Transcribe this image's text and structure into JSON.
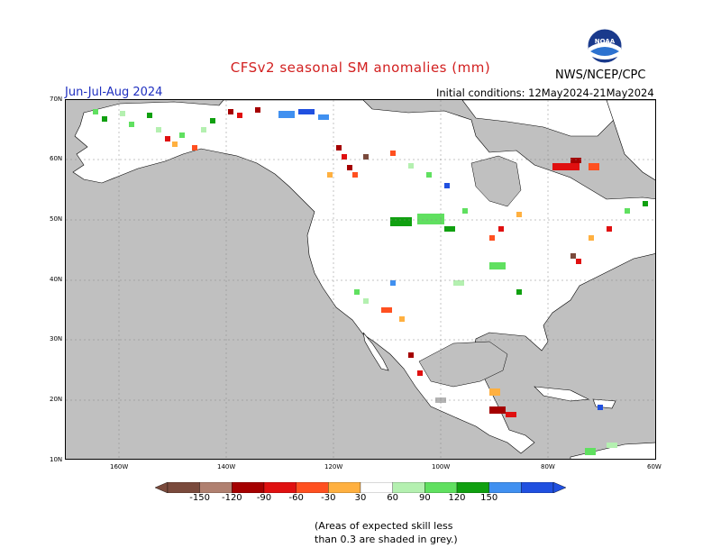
{
  "header": {
    "title": "CFSv2 seasonal SM anomalies (mm)",
    "source": "NWS/NCEP/CPC",
    "logo_text": "NOAA",
    "season": "Jun-Jul-Aug 2024",
    "initial_conditions": "Initial conditions: 12May2024-21May2024"
  },
  "map": {
    "ocean_color": "#c0c0c0",
    "land_color": "#ffffff",
    "lat_labels": [
      "70N",
      "60N",
      "50N",
      "40N",
      "30N",
      "20N",
      "10N"
    ],
    "lon_labels": [
      "160W",
      "140W",
      "120W",
      "100W",
      "80W",
      "60W"
    ]
  },
  "legend": {
    "labels": [
      "-150",
      "-120",
      "-90",
      "-60",
      "-30",
      "30",
      "60",
      "90",
      "120",
      "150"
    ],
    "colors": [
      "#7a4a3c",
      "#b08070",
      "#a50000",
      "#e01010",
      "#ff5020",
      "#ffb040",
      "#ffffff",
      "#b4f0b0",
      "#60e060",
      "#10a010",
      "#4090f0",
      "#2050e0"
    ]
  },
  "note": {
    "line1": "(Areas of expected skill less",
    "line2": "than 0.3 are shaded in grey.)"
  }
}
